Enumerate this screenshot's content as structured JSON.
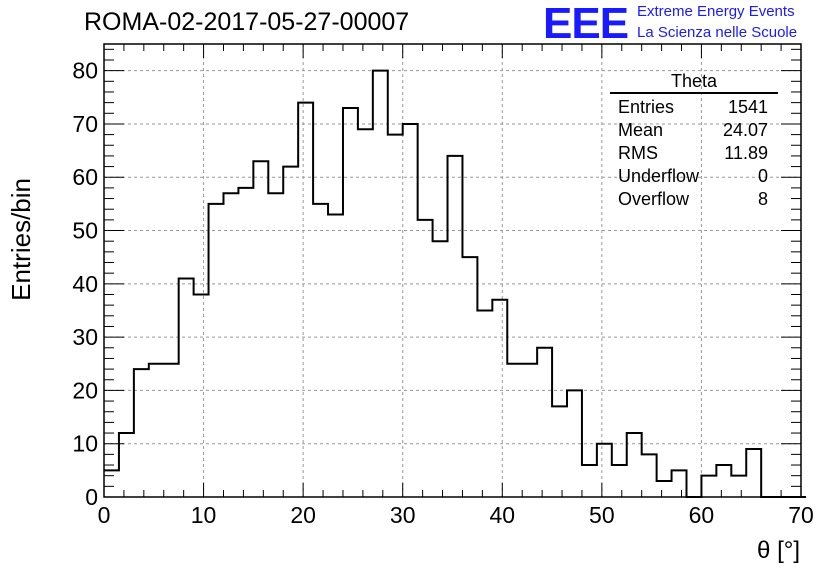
{
  "header": {
    "title": "ROMA-02-2017-05-27-00007",
    "logo_text": "EEE",
    "logo_line1": "Extreme Energy Events",
    "logo_line2": "La Scienza nelle Scuole"
  },
  "stats": {
    "title": "Theta",
    "rows": [
      {
        "label": "Entries",
        "value": "1541"
      },
      {
        "label": "Mean",
        "value": "24.07"
      },
      {
        "label": "RMS",
        "value": "11.89"
      },
      {
        "label": "Underflow",
        "value": "0"
      },
      {
        "label": "Overflow",
        "value": "8"
      }
    ]
  },
  "colors": {
    "logo": "#1a1aff",
    "line": "#000000",
    "grid": "#999999"
  },
  "chart_data": {
    "type": "bar",
    "style": "step-histogram",
    "xlabel": "θ [°]",
    "ylabel": "Entries/bin",
    "xlim": [
      0,
      70
    ],
    "ylim": [
      0,
      85
    ],
    "grid": true,
    "bin_width": 1.5,
    "x_ticks": [
      0,
      10,
      20,
      30,
      40,
      50,
      60,
      70
    ],
    "y_ticks": [
      0,
      10,
      20,
      30,
      40,
      50,
      60,
      70,
      80
    ],
    "values": [
      5,
      12,
      24,
      25,
      25,
      41,
      38,
      55,
      57,
      58,
      63,
      57,
      62,
      74,
      55,
      53,
      73,
      69,
      80,
      68,
      70,
      52,
      48,
      64,
      45,
      35,
      37,
      25,
      25,
      28,
      17,
      20,
      6,
      10,
      6,
      12,
      8,
      3,
      5,
      0,
      4,
      6,
      4,
      9,
      0,
      0,
      0
    ]
  }
}
